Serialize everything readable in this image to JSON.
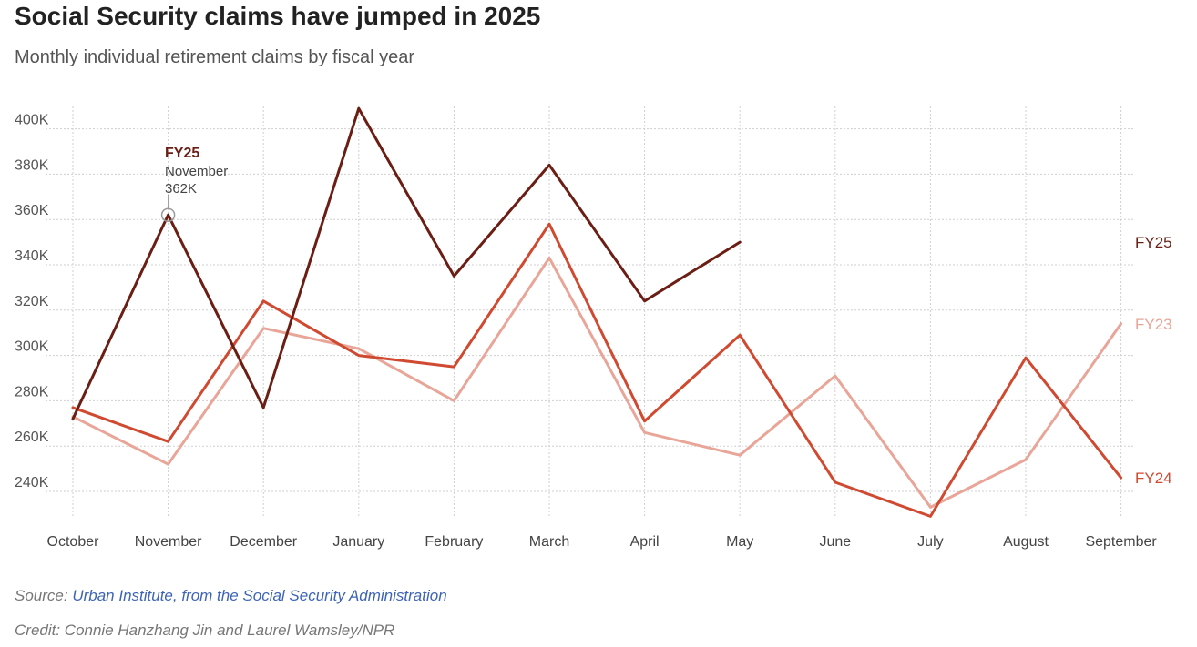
{
  "title": "Social Security claims have jumped in 2025",
  "subtitle": "Monthly individual retirement claims by fiscal year",
  "footer": {
    "source_label": "Source:",
    "source_link": "Urban Institute, from the Social Security Administration",
    "credit": "Credit: Connie Hanzhang Jin and Laurel Wamsley/NPR"
  },
  "chart_data": {
    "type": "line",
    "title": "Social Security claims have jumped in 2025",
    "subtitle": "Monthly individual retirement claims by fiscal year",
    "x": [
      "October",
      "November",
      "December",
      "January",
      "February",
      "March",
      "April",
      "May",
      "June",
      "July",
      "August",
      "September"
    ],
    "ylim": [
      230000,
      410000
    ],
    "y_ticks": [
      240000,
      260000,
      280000,
      300000,
      320000,
      340000,
      360000,
      380000,
      400000
    ],
    "y_tick_labels": [
      "240K",
      "260K",
      "280K",
      "300K",
      "320K",
      "340K",
      "360K",
      "380K",
      "400K"
    ],
    "grid": true,
    "legend": "direct labels at right end of lines",
    "series": [
      {
        "name": "FY23",
        "color": "#e8a598",
        "values": [
          273000,
          252000,
          312000,
          303000,
          280000,
          343000,
          266000,
          256000,
          291000,
          233000,
          254000,
          314000
        ]
      },
      {
        "name": "FY24",
        "color": "#cf4a30",
        "values": [
          277000,
          262000,
          324000,
          300000,
          295000,
          358000,
          271000,
          309000,
          244000,
          229000,
          299000,
          246000
        ]
      },
      {
        "name": "FY25",
        "color": "#6b1e14",
        "values": [
          272000,
          362000,
          277000,
          409000,
          335000,
          384000,
          324000,
          350000,
          null,
          null,
          null,
          null
        ]
      }
    ],
    "annotation": {
      "series": "FY25",
      "title": "FY25",
      "month": "November",
      "value": "362K",
      "x_index": 1
    }
  }
}
